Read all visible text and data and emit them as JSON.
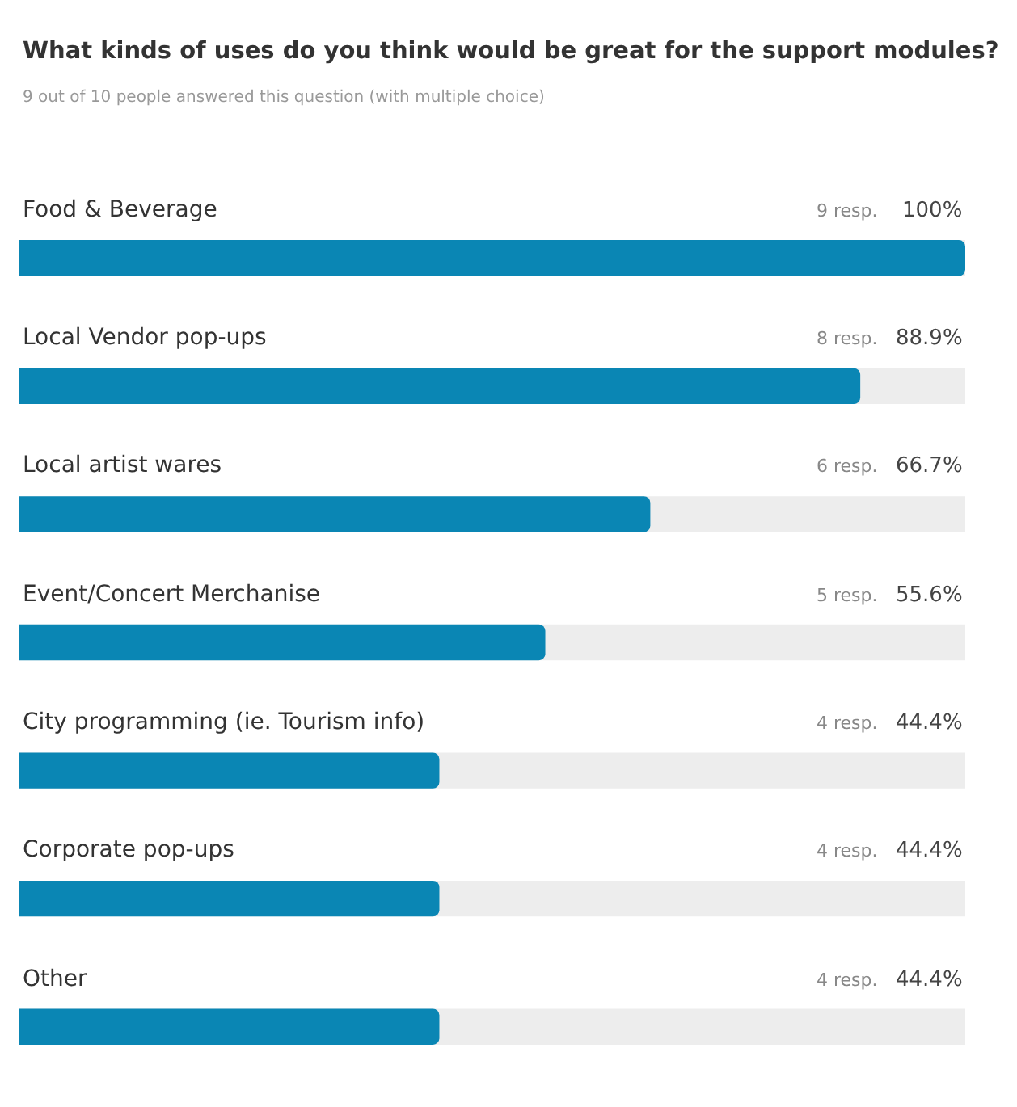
{
  "chart_data": {
    "type": "bar",
    "orientation": "horizontal",
    "title": "What kinds of uses do you think would be great for the support modules?",
    "subtitle": "9 out of 10 people answered this question (with multiple choice)",
    "categories": [
      "Food & Beverage",
      "Local Vendor pop-ups",
      "Local artist wares",
      "Event/Concert Merchanise",
      "City programming (ie. Tourism info)",
      "Corporate pop-ups",
      "Other"
    ],
    "series": [
      {
        "color": "#0a86b4",
        "values": [
          100,
          88.9,
          66.7,
          55.6,
          44.4,
          44.4,
          44.4
        ],
        "value_labels": [
          "100%",
          "88.9%",
          "66.7%",
          "55.6%",
          "44.4%",
          "44.4%",
          "44.4%"
        ]
      }
    ],
    "annotations": [
      "9 resp.",
      "8 resp.",
      "6 resp.",
      "5 resp.",
      "4 resp.",
      "4 resp.",
      "4 resp."
    ],
    "xlim": [
      0,
      100
    ],
    "tick_labels": false
  }
}
